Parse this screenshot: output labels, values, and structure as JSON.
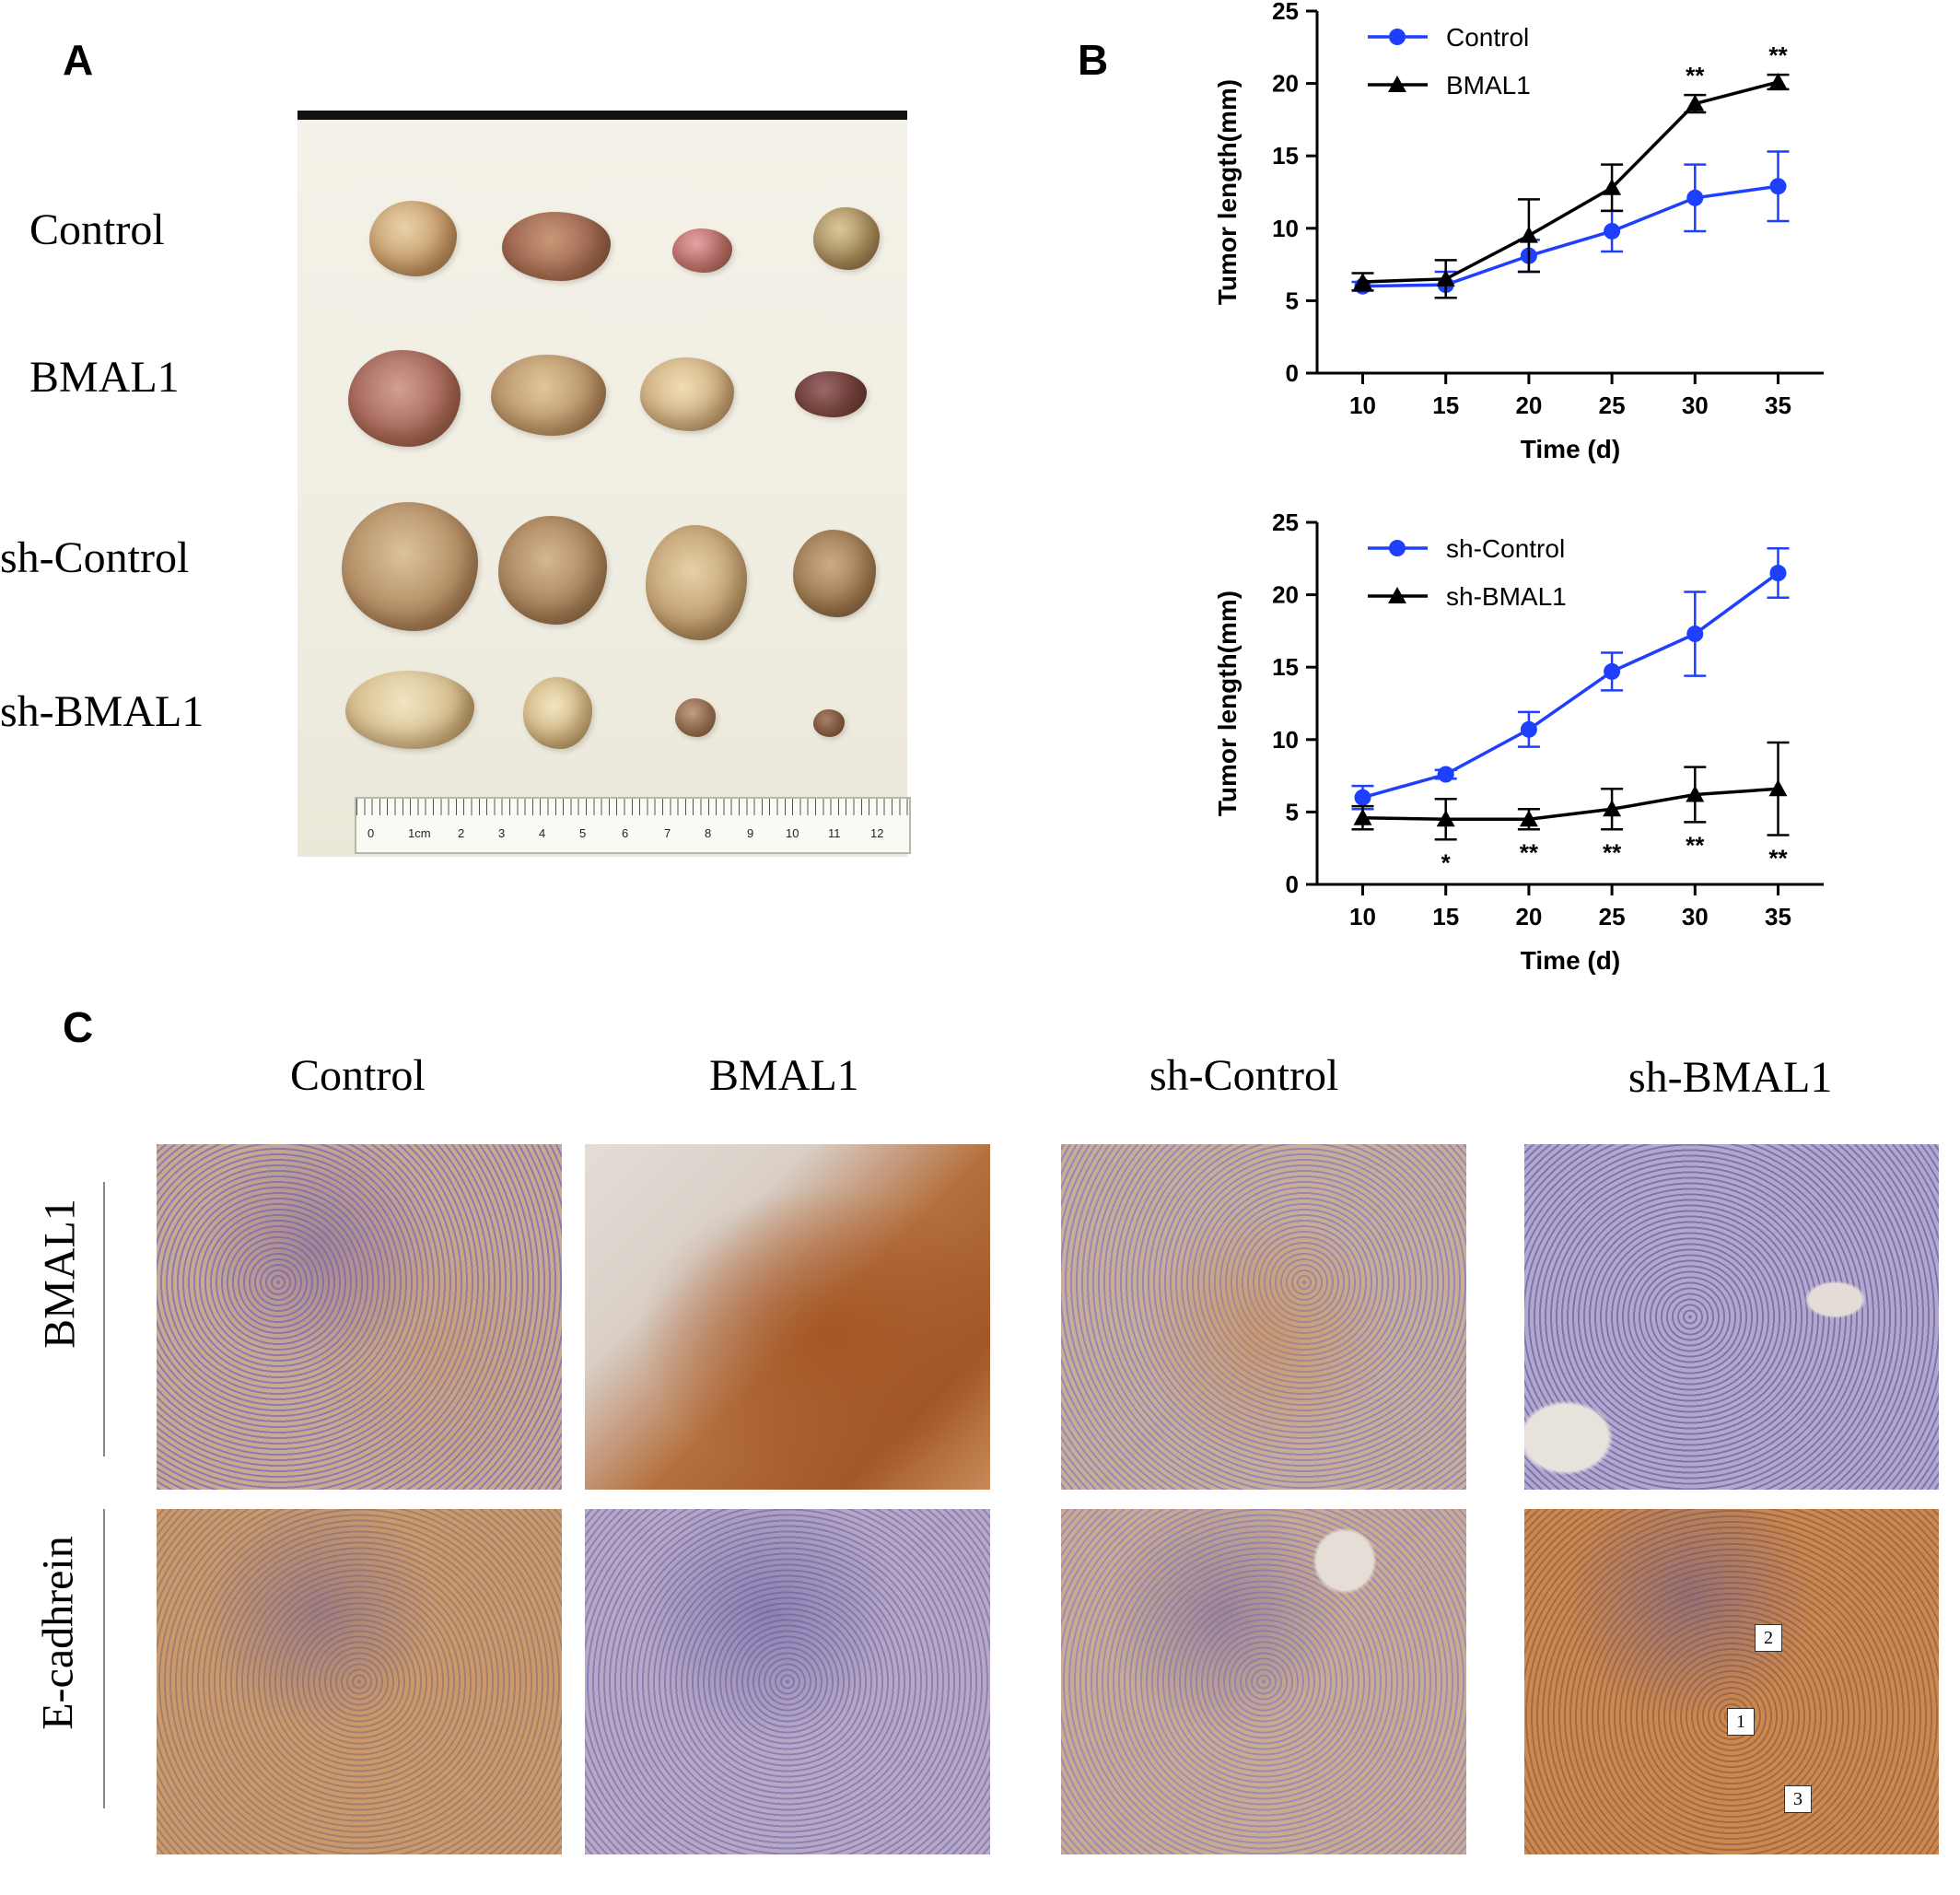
{
  "panels": {
    "a": {
      "letter": "A",
      "group_labels": [
        "Control",
        "BMAL1",
        "sh-Control",
        "sh-BMAL1"
      ],
      "ruler_labels": [
        "0",
        "1cm",
        "2",
        "3",
        "4",
        "5",
        "6",
        "7",
        "8",
        "9",
        "10",
        "11",
        "12"
      ]
    },
    "b": {
      "letter": "B"
    },
    "c": {
      "letter": "C",
      "column_labels": [
        "Control",
        "BMAL1",
        "sh-Control",
        "sh-BMAL1"
      ],
      "row_labels": [
        "BMAL1",
        "E-cadhrein"
      ],
      "callouts": [
        "2",
        "1",
        "3"
      ]
    }
  },
  "colors": {
    "control": "#1f3fff",
    "treatment": "#000000"
  },
  "chart_data": [
    {
      "type": "line",
      "xlabel": "Time  (d)",
      "ylabel": "Tumor  length(mm)",
      "xlim": [
        10,
        35
      ],
      "ylim": [
        0,
        25
      ],
      "x_ticks": [
        "10",
        "15",
        "20",
        "25",
        "30",
        "35"
      ],
      "y_ticks": [
        "0",
        "5",
        "10",
        "15",
        "20",
        "25"
      ],
      "x": [
        10,
        15,
        20,
        25,
        30,
        35
      ],
      "legend": "top-left",
      "series": [
        {
          "name": "Control",
          "color": "#1f3fff",
          "marker": "circle",
          "values": [
            6.0,
            6.1,
            8.1,
            9.8,
            12.1,
            12.9
          ],
          "errors": [
            0.3,
            0.9,
            1.1,
            1.4,
            2.3,
            2.4
          ],
          "annotations": [
            "",
            "",
            "",
            "",
            "",
            ""
          ]
        },
        {
          "name": "BMAL1",
          "color": "#000000",
          "marker": "triangle",
          "values": [
            6.3,
            6.5,
            9.5,
            12.8,
            18.6,
            20.1
          ],
          "errors": [
            0.6,
            1.3,
            2.5,
            1.6,
            0.6,
            0.5
          ],
          "annotations": [
            "",
            "",
            "",
            "",
            "**",
            "**"
          ]
        }
      ]
    },
    {
      "type": "line",
      "xlabel": "Time  (d)",
      "ylabel": "Tumor  length(mm)",
      "xlim": [
        10,
        35
      ],
      "ylim": [
        0,
        25
      ],
      "x_ticks": [
        "10",
        "15",
        "20",
        "25",
        "30",
        "35"
      ],
      "y_ticks": [
        "0",
        "5",
        "10",
        "15",
        "20",
        "25"
      ],
      "x": [
        10,
        15,
        20,
        25,
        30,
        35
      ],
      "legend": "top-left",
      "series": [
        {
          "name": "sh-Control",
          "color": "#1f3fff",
          "marker": "circle",
          "values": [
            6.0,
            7.6,
            10.7,
            14.7,
            17.3,
            21.5
          ],
          "errors": [
            0.8,
            0.3,
            1.2,
            1.3,
            2.9,
            1.7
          ],
          "annotations": [
            "",
            "",
            "",
            "",
            "",
            ""
          ]
        },
        {
          "name": "sh-BMAL1",
          "color": "#000000",
          "marker": "triangle",
          "values": [
            4.6,
            4.5,
            4.5,
            5.2,
            6.2,
            6.6
          ],
          "errors": [
            0.8,
            1.4,
            0.7,
            1.4,
            1.9,
            3.2
          ],
          "annotations": [
            "",
            "*",
            "**",
            "**",
            "**",
            "**"
          ]
        }
      ]
    }
  ]
}
